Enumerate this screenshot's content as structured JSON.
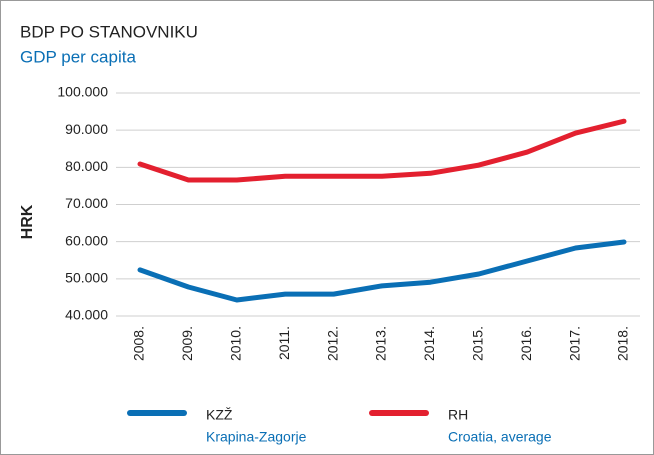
{
  "chart_data": {
    "type": "line",
    "title": "BDP PO STANOVNIKU",
    "subtitle": "GDP per capita",
    "y_label": "HRK",
    "categories": [
      "2008.",
      "2009.",
      "2010.",
      "2011.",
      "2012.",
      "2013.",
      "2014.",
      "2015.",
      "2016.",
      "2017.",
      "2018."
    ],
    "series": [
      {
        "name": "KZŽ",
        "description": "Krapina-Zagorje",
        "color": "#0a6fb5",
        "values": [
          52400,
          47800,
          44300,
          45900,
          45900,
          48100,
          49100,
          51300,
          54800,
          58300,
          59900
        ]
      },
      {
        "name": "RH",
        "description": "Croatia, average",
        "color": "#e3202f",
        "values": [
          80900,
          76600,
          76600,
          77600,
          77600,
          77600,
          78400,
          80600,
          84100,
          89200,
          92400
        ]
      }
    ],
    "ylim": [
      40000,
      100000
    ],
    "yticks": [
      {
        "value": 40000,
        "label": "40.000"
      },
      {
        "value": 50000,
        "label": "50.000"
      },
      {
        "value": 60000,
        "label": "60.000"
      },
      {
        "value": 70000,
        "label": "70.000"
      },
      {
        "value": 80000,
        "label": "80.000"
      },
      {
        "value": 90000,
        "label": "90.000"
      },
      {
        "value": 100000,
        "label": "100.000"
      }
    ],
    "grid": true
  }
}
